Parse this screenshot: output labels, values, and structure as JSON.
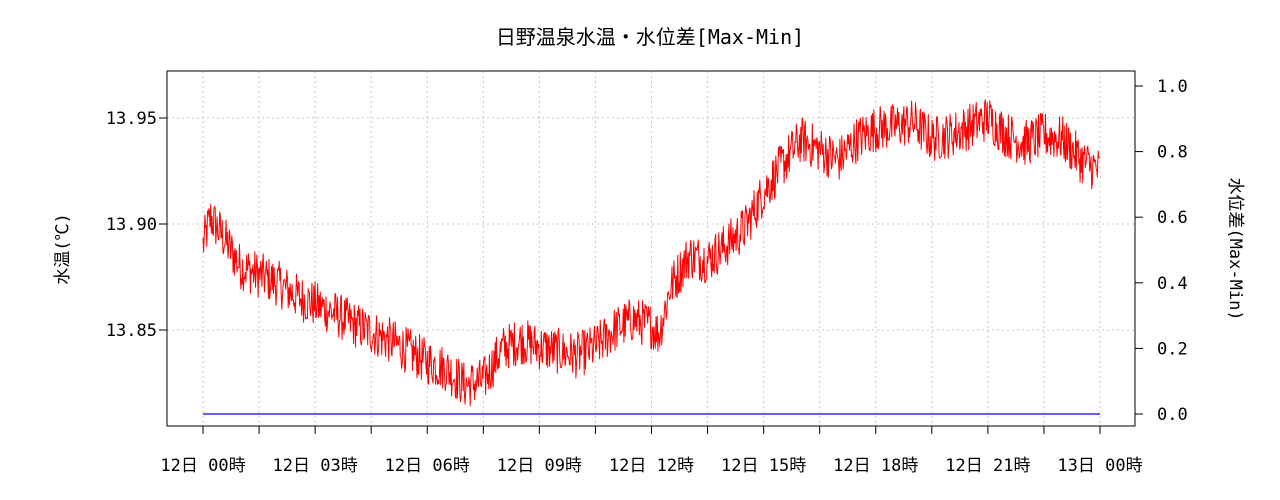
{
  "chart_data": {
    "type": "line",
    "title": "日野温泉水温・水位差[Max-Min]",
    "ylabel_left": "水温(℃)",
    "ylabel_right": "水位差(Max-Min)",
    "x_ticks": [
      "12日 00時",
      "12日 03時",
      "12日 06時",
      "12日 09時",
      "12日 12時",
      "12日 15時",
      "12日 18時",
      "12日 21時",
      "13日 00時"
    ],
    "x_range_hours": [
      0,
      24
    ],
    "y_left": {
      "ticks": [
        "13.85",
        "13.90",
        "13.95"
      ],
      "range": [
        13.8,
        13.97
      ]
    },
    "y_right": {
      "ticks": [
        "0.0",
        "0.2",
        "0.4",
        "0.6",
        "0.8",
        "1.0"
      ],
      "range": [
        0.0,
        1.0
      ]
    },
    "grid": true,
    "series": [
      {
        "name": "",
        "axis": "left",
        "color": "#ff0000",
        "x": [
          0.0,
          0.2,
          0.5,
          1.0,
          1.5,
          2.0,
          2.5,
          3.0,
          3.5,
          4.0,
          4.5,
          5.0,
          5.5,
          6.0,
          6.5,
          7.0,
          7.5,
          8.0,
          8.5,
          9.0,
          9.5,
          10.0,
          10.5,
          11.0,
          11.5,
          12.0,
          12.2,
          12.5,
          13.0,
          13.5,
          14.0,
          14.5,
          15.0,
          15.5,
          16.0,
          16.5,
          17.0,
          17.5,
          18.0,
          18.5,
          19.0,
          19.5,
          20.0,
          20.5,
          21.0,
          21.5,
          22.0,
          22.5,
          23.0,
          23.5,
          24.0
        ],
        "y": [
          13.89,
          13.903,
          13.895,
          13.88,
          13.876,
          13.872,
          13.866,
          13.862,
          13.858,
          13.853,
          13.849,
          13.845,
          13.84,
          13.835,
          13.832,
          13.824,
          13.826,
          13.841,
          13.845,
          13.842,
          13.84,
          13.838,
          13.842,
          13.85,
          13.855,
          13.852,
          13.848,
          13.87,
          13.885,
          13.883,
          13.89,
          13.898,
          13.915,
          13.928,
          13.94,
          13.935,
          13.93,
          13.94,
          13.945,
          13.946,
          13.948,
          13.94,
          13.942,
          13.946,
          13.95,
          13.942,
          13.938,
          13.942,
          13.94,
          13.93,
          13.925
        ]
      },
      {
        "name": "",
        "axis": "right",
        "color": "#0000ff",
        "x": [
          0,
          24
        ],
        "y": [
          0.0,
          0.0
        ]
      }
    ]
  }
}
